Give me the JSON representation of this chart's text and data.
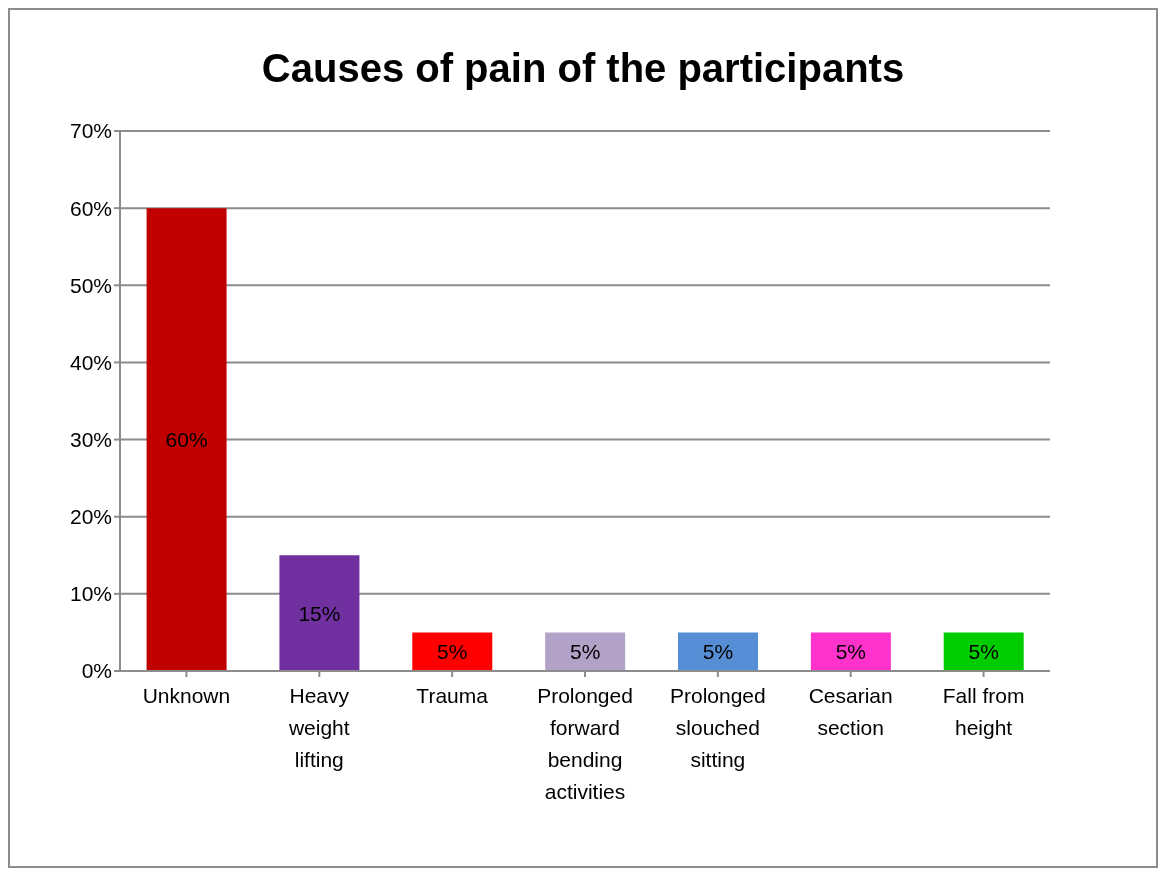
{
  "chart_data": {
    "type": "bar",
    "title": "Causes of pain of the participants",
    "categories": [
      "Unknown",
      "Heavy weight lifting",
      "Trauma",
      "Prolonged forward bending activities",
      "Prolonged slouched sitting",
      "Cesarian section",
      "Fall from height"
    ],
    "values": [
      60,
      15,
      5,
      5,
      5,
      5,
      5
    ],
    "colors": [
      "#c00000",
      "#7030a0",
      "#ff0000",
      "#b3a2c7",
      "#558ed5",
      "#ff33cc",
      "#00cc00"
    ],
    "value_labels": [
      "60%",
      "15%",
      "5%",
      "5%",
      "5%",
      "5%",
      "5%"
    ],
    "ylim": [
      0,
      70
    ],
    "yticks": [
      {
        "value": 0,
        "label": "0%"
      },
      {
        "value": 10,
        "label": "10%"
      },
      {
        "value": 20,
        "label": "20%"
      },
      {
        "value": 30,
        "label": "30%"
      },
      {
        "value": 40,
        "label": "40%"
      },
      {
        "value": 50,
        "label": "50%"
      },
      {
        "value": 60,
        "label": "60%"
      },
      {
        "value": 70,
        "label": "70%"
      }
    ],
    "grid": "y",
    "legend": false
  }
}
